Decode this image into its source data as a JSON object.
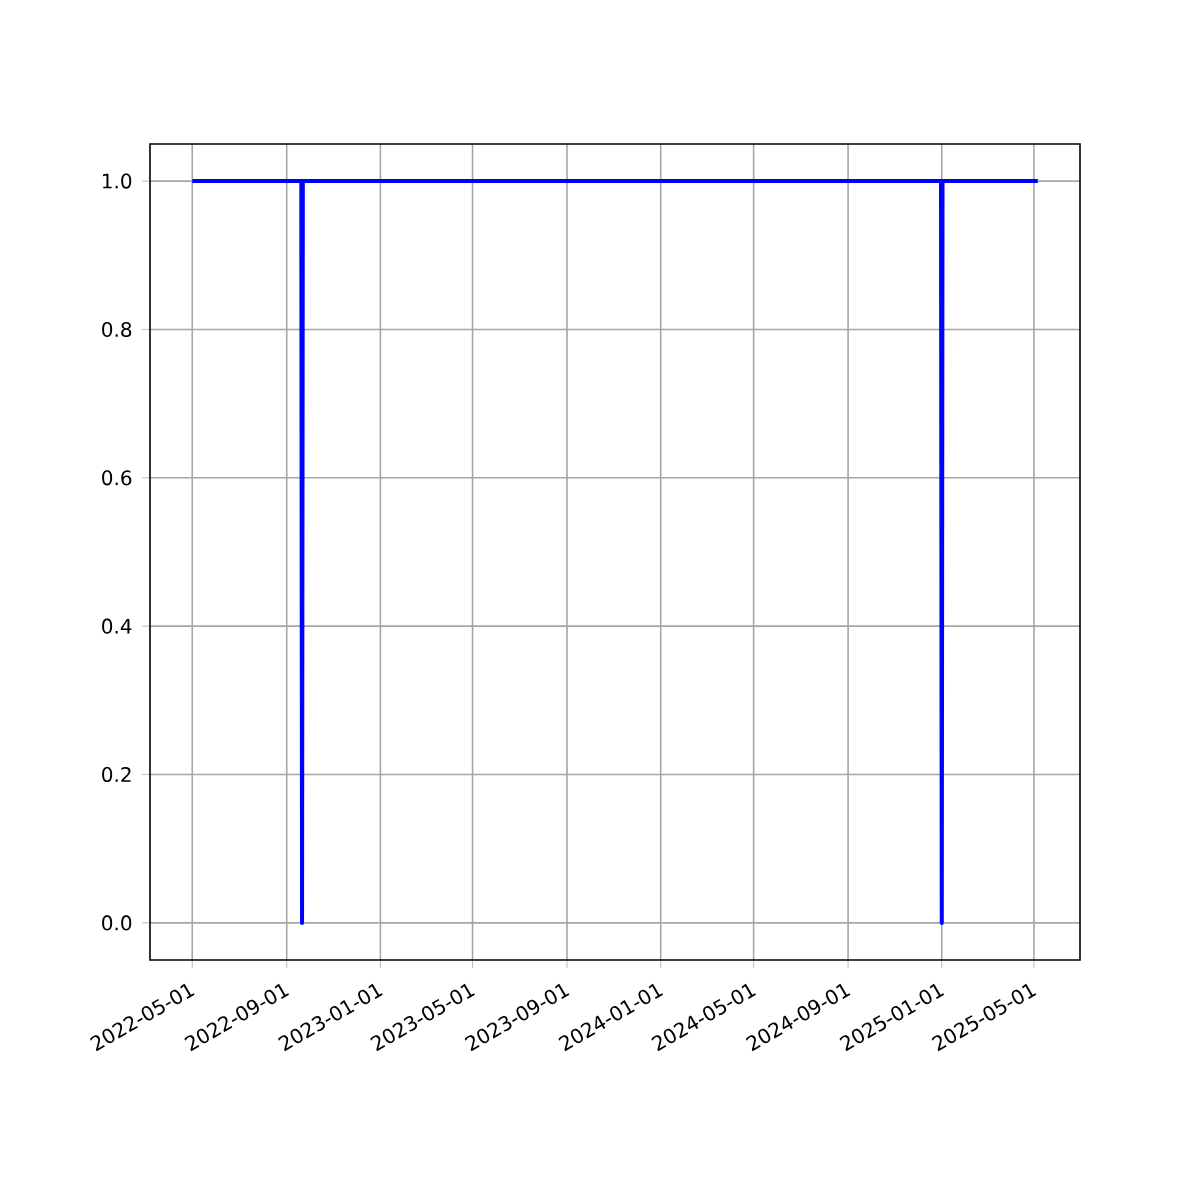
{
  "chart_data": {
    "type": "line",
    "color": "#0000ff",
    "grid": true,
    "x": [
      "2022-05-01",
      "2022-09-20",
      "2022-09-21",
      "2022-09-22",
      "2024-12-31",
      "2025-01-01",
      "2025-01-02",
      "2025-05-06"
    ],
    "values": [
      1,
      1,
      0,
      1,
      1,
      0,
      1,
      1
    ],
    "xlim": [
      "2022-03-07",
      "2025-06-30"
    ],
    "xticks": [
      "2022-05-01",
      "2022-09-01",
      "2023-01-01",
      "2023-05-01",
      "2023-09-01",
      "2024-01-01",
      "2024-05-01",
      "2024-09-01",
      "2025-01-01",
      "2025-05-01"
    ],
    "ylim": [
      -0.05,
      1.05
    ],
    "yticks": [
      {
        "value": 0,
        "label": "0.0"
      },
      {
        "value": 0.2,
        "label": "0.2"
      },
      {
        "value": 0.4,
        "label": "0.4"
      },
      {
        "value": 0.6,
        "label": "0.6"
      },
      {
        "value": 0.8,
        "label": "0.8"
      },
      {
        "value": 1,
        "label": "1.0"
      }
    ]
  }
}
